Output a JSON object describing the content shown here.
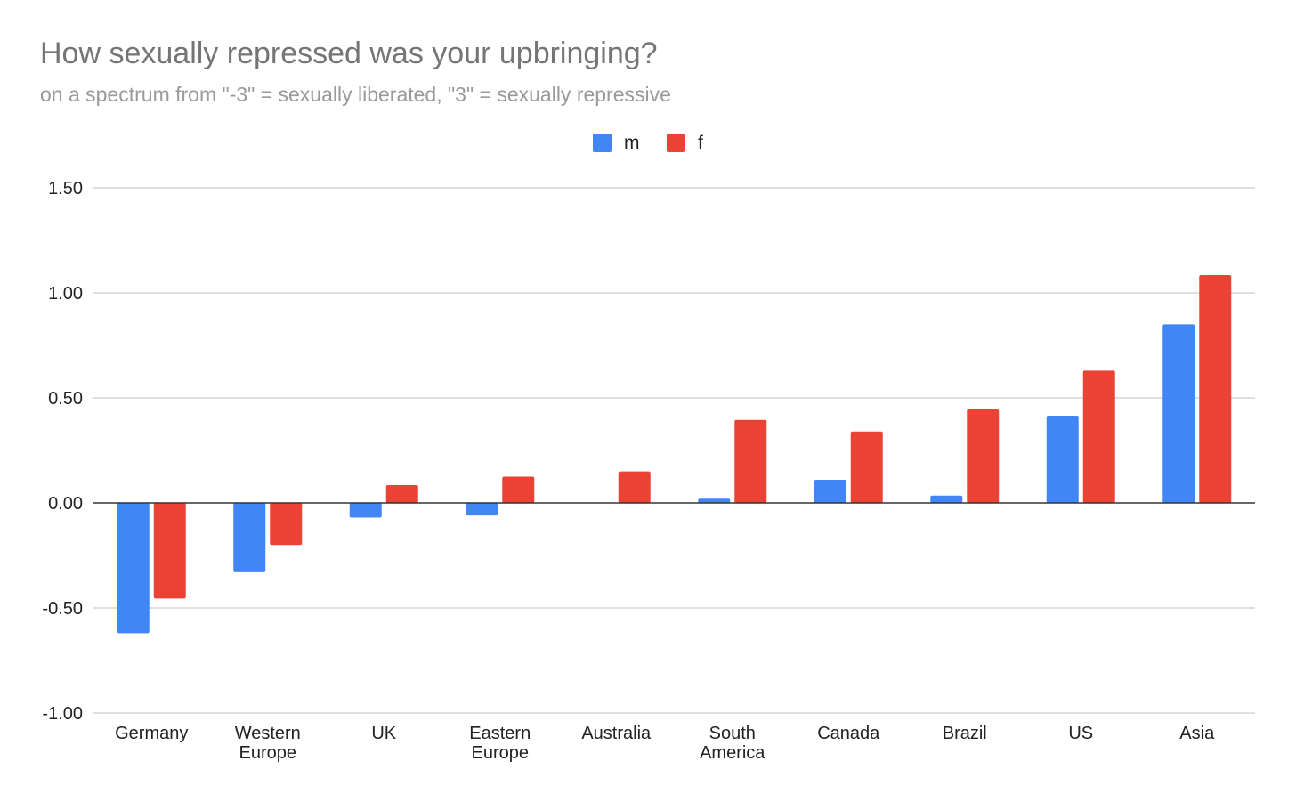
{
  "chart_data": {
    "type": "bar",
    "title": "How sexually repressed was your upbringing?",
    "subtitle": "on a spectrum from \"-3\" = sexually liberated, \"3\" = sexually repressive",
    "xlabel": "",
    "ylabel": "",
    "ylim": [
      -1.0,
      1.5
    ],
    "yticks": [
      "1.50",
      "1.00",
      "0.50",
      "0.00",
      "-0.50",
      "-1.00"
    ],
    "ytick_values": [
      1.5,
      1.0,
      0.5,
      0.0,
      -0.5,
      -1.0
    ],
    "grid": true,
    "legend_position": "top-center",
    "categories": [
      [
        "Germany"
      ],
      [
        "Western",
        "Europe"
      ],
      [
        "UK"
      ],
      [
        "Eastern",
        "Europe"
      ],
      [
        "Australia"
      ],
      [
        "South",
        "America"
      ],
      [
        "Canada"
      ],
      [
        "Brazil"
      ],
      [
        "US"
      ],
      [
        "Asia"
      ]
    ],
    "series": [
      {
        "name": "m",
        "color": "#4285f4",
        "values": [
          -0.62,
          -0.33,
          -0.07,
          -0.06,
          0.0,
          0.02,
          0.11,
          0.035,
          0.415,
          0.85
        ]
      },
      {
        "name": "f",
        "color": "#ea4335",
        "values": [
          -0.455,
          -0.2,
          0.085,
          0.125,
          0.15,
          0.395,
          0.34,
          0.445,
          0.63,
          1.085
        ]
      }
    ]
  }
}
